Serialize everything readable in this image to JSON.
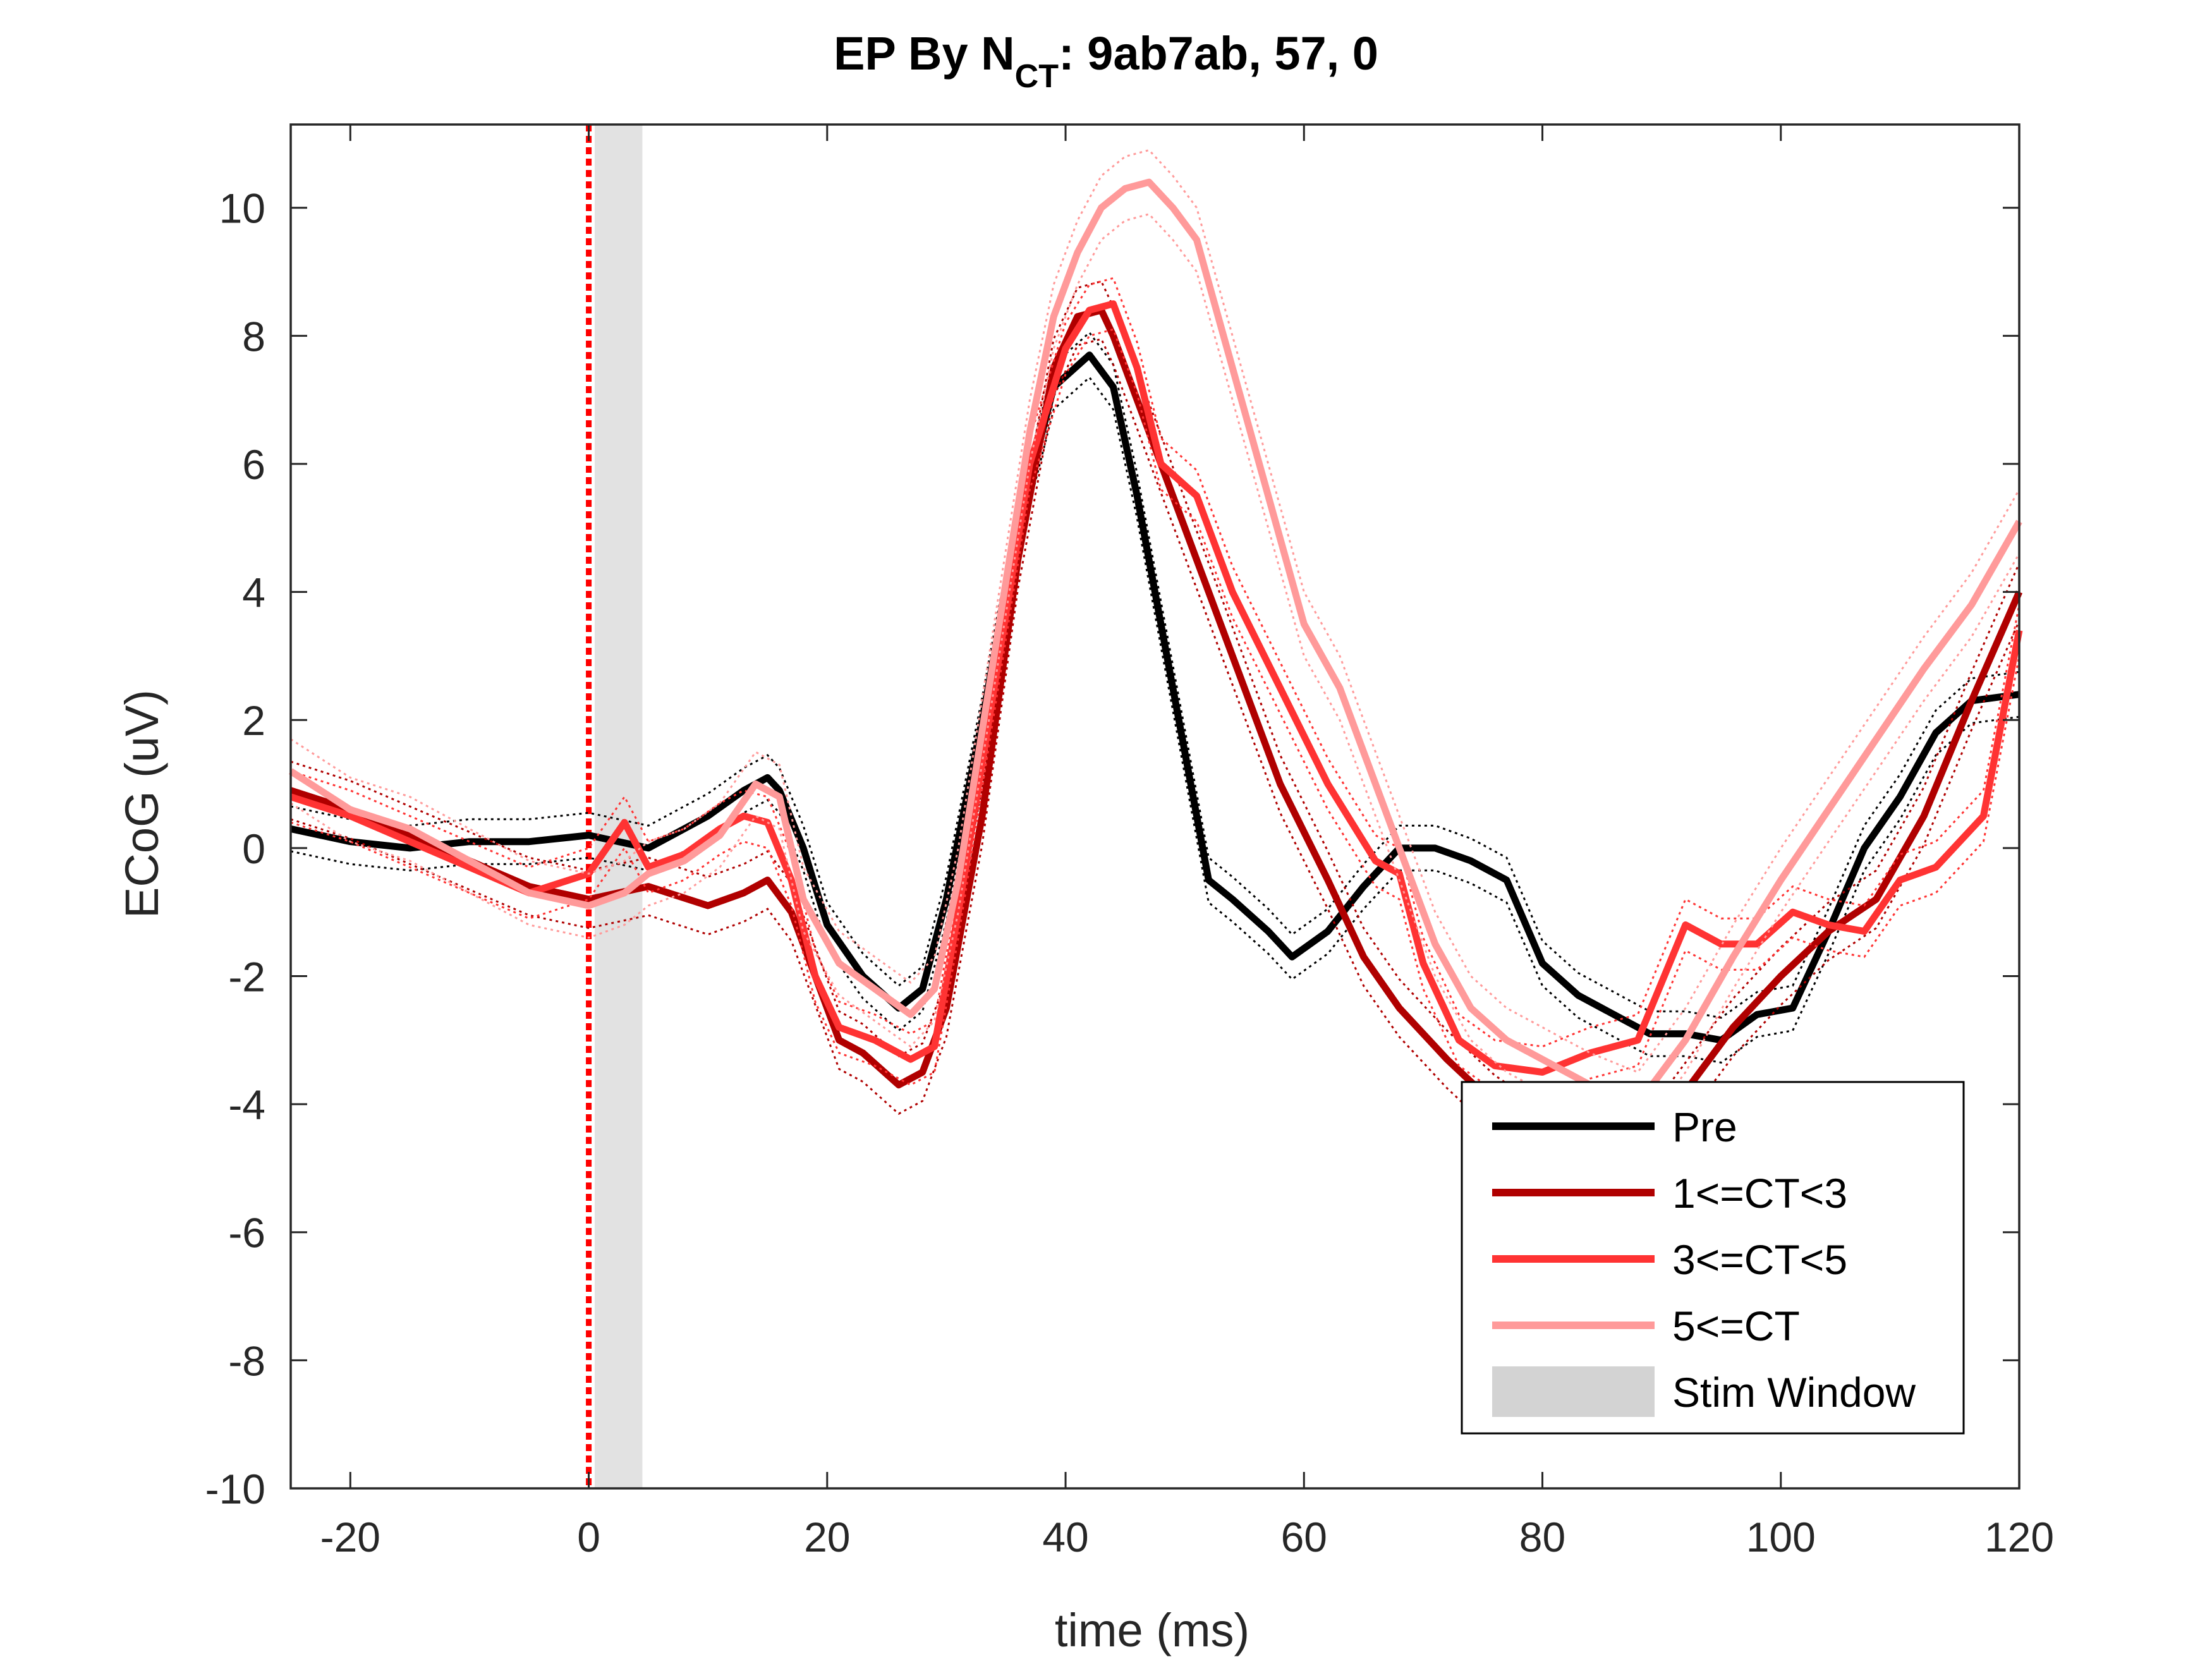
{
  "chart_data": {
    "type": "line",
    "title": {
      "prefix": "EP By N",
      "subscript": "CT",
      "suffix": ": 9ab7ab, 57, 0"
    },
    "xlabel": "time (ms)",
    "ylabel": "ECoG (uV)",
    "xlim": [
      -25,
      120
    ],
    "ylim": [
      -10,
      11.3
    ],
    "xticks": [
      -20,
      0,
      20,
      40,
      60,
      80,
      100,
      120
    ],
    "yticks": [
      -10,
      -8,
      -6,
      -4,
      -2,
      0,
      2,
      4,
      6,
      8,
      10
    ],
    "grid": false,
    "legend_position": "bottom-right",
    "stim_marker_x": 0,
    "stim_window": {
      "name": "Stim Window",
      "x0": 0.5,
      "x1": 4.5,
      "color": "#d3d3d3"
    },
    "series": [
      {
        "name": "Pre",
        "color": "#000000",
        "x": [
          -25,
          -20,
          -15,
          -10,
          -5,
          0,
          5,
          10,
          13,
          15,
          16,
          18,
          20,
          23,
          26,
          28,
          30,
          33,
          36,
          39,
          42,
          44,
          46,
          48,
          50,
          52,
          54,
          57,
          59,
          62,
          65,
          68,
          71,
          74,
          77,
          80,
          83,
          86,
          89,
          92,
          95,
          98,
          101,
          104,
          107,
          110,
          113,
          116,
          120
        ],
        "y": [
          0.3,
          0.1,
          0.0,
          0.1,
          0.1,
          0.2,
          0.0,
          0.5,
          0.9,
          1.1,
          0.9,
          0.0,
          -1.2,
          -2.0,
          -2.5,
          -2.2,
          -0.8,
          2.0,
          5.0,
          7.2,
          7.7,
          7.2,
          5.5,
          3.5,
          1.5,
          -0.5,
          -0.8,
          -1.3,
          -1.7,
          -1.3,
          -0.6,
          0.0,
          0.0,
          -0.2,
          -0.5,
          -1.8,
          -2.3,
          -2.6,
          -2.9,
          -2.9,
          -3.0,
          -2.6,
          -2.5,
          -1.3,
          0.0,
          0.8,
          1.8,
          2.3,
          2.4
        ]
      },
      {
        "name": "1<=CT<3",
        "color": "#b00000",
        "x": [
          -25,
          -20,
          -15,
          -10,
          -5,
          0,
          5,
          10,
          13,
          15,
          17,
          19,
          21,
          23,
          26,
          28,
          30,
          33,
          36,
          39,
          41,
          43,
          44,
          46,
          48,
          50,
          52,
          55,
          58,
          62,
          65,
          68,
          72,
          76,
          80,
          84,
          88,
          92,
          96,
          100,
          104,
          108,
          112,
          116,
          120
        ],
        "y": [
          0.9,
          0.6,
          0.2,
          -0.2,
          -0.6,
          -0.8,
          -0.6,
          -0.9,
          -0.7,
          -0.5,
          -1.0,
          -2.0,
          -3.0,
          -3.2,
          -3.7,
          -3.5,
          -2.5,
          0.5,
          4.5,
          7.5,
          8.3,
          8.4,
          8.0,
          7.0,
          6.0,
          5.0,
          4.0,
          2.5,
          1.0,
          -0.5,
          -1.7,
          -2.5,
          -3.3,
          -4.0,
          -4.5,
          -5.5,
          -4.8,
          -3.8,
          -2.8,
          -2.0,
          -1.3,
          -0.8,
          0.5,
          2.3,
          4.0
        ]
      },
      {
        "name": "3<=CT<5",
        "color": "#ff3333",
        "x": [
          -25,
          -20,
          -15,
          -10,
          -5,
          0,
          3,
          5,
          8,
          11,
          13,
          15,
          17,
          19,
          21,
          24,
          27,
          29,
          31,
          34,
          37,
          40,
          42,
          44,
          46,
          48,
          51,
          54,
          58,
          62,
          66,
          68,
          70,
          73,
          76,
          80,
          84,
          88,
          92,
          95,
          98,
          101,
          104,
          107,
          110,
          113,
          117,
          120
        ],
        "y": [
          0.8,
          0.5,
          0.1,
          -0.3,
          -0.7,
          -0.4,
          0.4,
          -0.3,
          -0.1,
          0.3,
          0.5,
          0.4,
          -0.5,
          -2.0,
          -2.8,
          -3.0,
          -3.3,
          -3.1,
          -1.0,
          2.5,
          6.0,
          7.8,
          8.4,
          8.5,
          7.5,
          6.0,
          5.5,
          4.0,
          2.5,
          1.0,
          -0.2,
          -0.4,
          -1.8,
          -3.0,
          -3.4,
          -3.5,
          -3.2,
          -3.0,
          -1.2,
          -1.5,
          -1.5,
          -1.0,
          -1.2,
          -1.3,
          -0.5,
          -0.3,
          0.5,
          3.4
        ]
      },
      {
        "name": "5<=CT",
        "color": "#ff9a9a",
        "x": [
          -25,
          -20,
          -15,
          -10,
          -5,
          0,
          3,
          5,
          8,
          11,
          14,
          16,
          18,
          21,
          24,
          27,
          29,
          31,
          34,
          37,
          39,
          41,
          43,
          45,
          47,
          49,
          51,
          54,
          57,
          60,
          63,
          65,
          68,
          71,
          74,
          77,
          80,
          84,
          88,
          92,
          96,
          100,
          104,
          108,
          112,
          116,
          120
        ],
        "y": [
          1.2,
          0.6,
          0.3,
          -0.2,
          -0.7,
          -0.9,
          -0.7,
          -0.4,
          -0.2,
          0.2,
          1.0,
          0.8,
          -0.8,
          -1.8,
          -2.2,
          -2.6,
          -2.2,
          -0.5,
          3.0,
          6.5,
          8.3,
          9.3,
          10.0,
          10.3,
          10.4,
          10.0,
          9.5,
          7.5,
          5.5,
          3.5,
          2.5,
          1.5,
          0.0,
          -1.5,
          -2.5,
          -3.0,
          -3.3,
          -3.7,
          -4.0,
          -3.0,
          -1.7,
          -0.5,
          0.6,
          1.7,
          2.8,
          3.8,
          5.1
        ]
      }
    ]
  }
}
